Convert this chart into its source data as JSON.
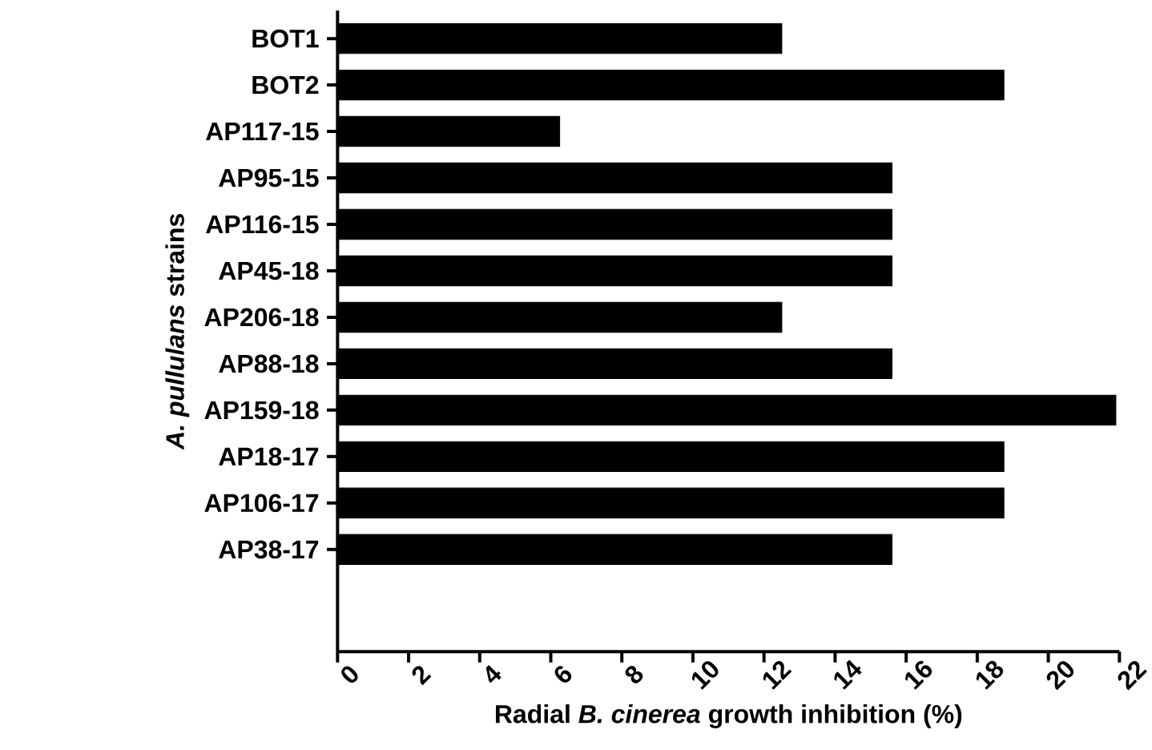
{
  "chart_data": {
    "type": "bar",
    "orientation": "horizontal",
    "xlabel": "Radial *B. cinerea* growth inhibition (%)",
    "ylabel": "*A. pullulans* strains",
    "categories": [
      "BOT1",
      "BOT2",
      "AP117-15",
      "AP95-15",
      "AP116-15",
      "AP45-18",
      "AP206-18",
      "AP88-18",
      "AP159-18",
      "AP18-17",
      "AP106-17",
      "AP38-17"
    ],
    "values": [
      12.5,
      18.75,
      6.25,
      15.6,
      15.6,
      15.6,
      12.5,
      15.6,
      21.9,
      18.75,
      18.75,
      15.6
    ],
    "color": "#000000",
    "xlim": [
      0,
      22
    ],
    "xticks": [
      0,
      2,
      4,
      6,
      8,
      10,
      12,
      14,
      16,
      18,
      20,
      22
    ],
    "grid": false
  }
}
